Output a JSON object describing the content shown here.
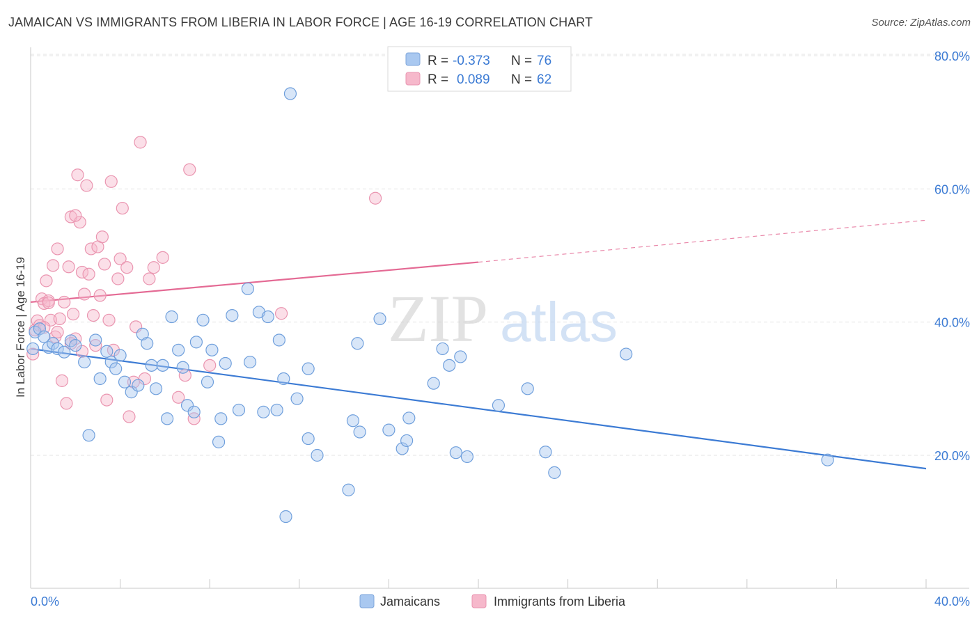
{
  "title": "JAMAICAN VS IMMIGRANTS FROM LIBERIA IN LABOR FORCE | AGE 16-19 CORRELATION CHART",
  "source": "Source: ZipAtlas.com",
  "watermark": {
    "zip": "ZIP",
    "atlas": "atlas"
  },
  "colors": {
    "blue": "#3c7bd4",
    "blue_fill": "#a9c8f0",
    "pink": "#e46a94",
    "pink_fill": "#f6b8cb",
    "grid": "#e3e3e3"
  },
  "legend": {
    "rows": [
      {
        "r_label": "R =",
        "r_value": "-0.373",
        "n_label": "N =",
        "n_value": "76"
      },
      {
        "r_label": "R =",
        "r_value": "0.089",
        "n_label": "N =",
        "n_value": "62"
      }
    ]
  },
  "chart_data": {
    "type": "scatter",
    "title": "JAMAICAN VS IMMIGRANTS FROM LIBERIA IN LABOR FORCE | AGE 16-19 CORRELATION CHART",
    "xlabel": "",
    "ylabel": "In Labor Force | Age 16-19",
    "xlim": [
      0,
      40
    ],
    "ylim": [
      0,
      82
    ],
    "x_tick_labels": [
      "0.0%",
      "40.0%"
    ],
    "y_ticks": [
      20,
      40,
      60,
      80
    ],
    "y_tick_labels": [
      "20.0%",
      "40.0%",
      "60.0%",
      "80.0%"
    ],
    "grid": true,
    "legend_position": "top-center",
    "series": [
      {
        "name": "Jamaicans",
        "color": "#3c7bd4",
        "trend": {
          "x": [
            0,
            40
          ],
          "y": [
            36.0,
            18.0
          ]
        },
        "points": [
          [
            0.2,
            38.5
          ],
          [
            0.4,
            39.0
          ],
          [
            0.6,
            37.8
          ],
          [
            0.8,
            36.2
          ],
          [
            1.0,
            36.8
          ],
          [
            1.2,
            36.0
          ],
          [
            1.5,
            35.5
          ],
          [
            1.8,
            37.2
          ],
          [
            2.0,
            36.5
          ],
          [
            2.4,
            34.0
          ],
          [
            2.6,
            23.0
          ],
          [
            2.9,
            37.3
          ],
          [
            3.1,
            31.5
          ],
          [
            3.4,
            35.6
          ],
          [
            3.6,
            34.0
          ],
          [
            3.8,
            33.0
          ],
          [
            4.0,
            35.0
          ],
          [
            4.2,
            31.0
          ],
          [
            4.5,
            29.5
          ],
          [
            4.8,
            30.5
          ],
          [
            5.0,
            38.2
          ],
          [
            5.2,
            36.8
          ],
          [
            5.4,
            33.5
          ],
          [
            5.6,
            30.0
          ],
          [
            5.9,
            33.5
          ],
          [
            6.1,
            25.5
          ],
          [
            6.3,
            40.8
          ],
          [
            6.6,
            35.8
          ],
          [
            6.8,
            33.2
          ],
          [
            7.0,
            27.5
          ],
          [
            7.3,
            26.5
          ],
          [
            7.4,
            37.0
          ],
          [
            7.7,
            40.3
          ],
          [
            7.9,
            31.0
          ],
          [
            8.1,
            35.8
          ],
          [
            8.4,
            22.0
          ],
          [
            8.5,
            25.5
          ],
          [
            8.7,
            33.8
          ],
          [
            9.0,
            41.0
          ],
          [
            9.3,
            26.8
          ],
          [
            9.7,
            45.0
          ],
          [
            9.8,
            34.0
          ],
          [
            10.2,
            41.5
          ],
          [
            10.4,
            26.5
          ],
          [
            10.6,
            40.8
          ],
          [
            11.0,
            26.8
          ],
          [
            11.1,
            37.3
          ],
          [
            11.3,
            31.5
          ],
          [
            11.6,
            74.3
          ],
          [
            11.4,
            10.8
          ],
          [
            11.9,
            28.5
          ],
          [
            12.4,
            22.5
          ],
          [
            12.4,
            33.0
          ],
          [
            12.8,
            20.0
          ],
          [
            14.2,
            14.8
          ],
          [
            14.4,
            25.2
          ],
          [
            14.7,
            23.5
          ],
          [
            14.6,
            36.8
          ],
          [
            15.6,
            40.5
          ],
          [
            16.0,
            23.8
          ],
          [
            16.6,
            21.0
          ],
          [
            16.8,
            22.2
          ],
          [
            16.9,
            25.6
          ],
          [
            18.0,
            30.8
          ],
          [
            18.4,
            36.0
          ],
          [
            18.7,
            33.5
          ],
          [
            19.0,
            20.4
          ],
          [
            19.2,
            34.8
          ],
          [
            19.5,
            19.8
          ],
          [
            20.9,
            27.5
          ],
          [
            22.2,
            30.0
          ],
          [
            23.0,
            20.5
          ],
          [
            23.4,
            17.4
          ],
          [
            26.6,
            35.2
          ],
          [
            35.6,
            19.3
          ],
          [
            0.1,
            36.0
          ]
        ]
      },
      {
        "name": "Immigrants from Liberia",
        "color": "#e46a94",
        "trend": {
          "x": [
            0,
            20
          ],
          "y": [
            43.0,
            49.0
          ],
          "dashed_to": {
            "x": 40,
            "y": 55.3
          }
        },
        "points": [
          [
            0.1,
            35.2
          ],
          [
            0.2,
            38.8
          ],
          [
            0.3,
            40.2
          ],
          [
            0.4,
            39.5
          ],
          [
            0.5,
            43.5
          ],
          [
            0.6,
            42.8
          ],
          [
            0.7,
            46.2
          ],
          [
            0.8,
            43.2
          ],
          [
            0.9,
            40.3
          ],
          [
            1.0,
            48.5
          ],
          [
            1.1,
            37.8
          ],
          [
            1.2,
            51.0
          ],
          [
            1.3,
            40.5
          ],
          [
            1.4,
            31.2
          ],
          [
            1.5,
            43.0
          ],
          [
            1.6,
            27.8
          ],
          [
            1.7,
            48.3
          ],
          [
            1.8,
            55.8
          ],
          [
            1.9,
            41.2
          ],
          [
            2.0,
            37.5
          ],
          [
            2.1,
            62.1
          ],
          [
            2.2,
            55.0
          ],
          [
            2.3,
            47.5
          ],
          [
            2.4,
            44.2
          ],
          [
            2.5,
            60.5
          ],
          [
            2.6,
            47.2
          ],
          [
            2.7,
            51.0
          ],
          [
            2.8,
            41.0
          ],
          [
            2.9,
            36.5
          ],
          [
            3.0,
            51.3
          ],
          [
            3.1,
            44.0
          ],
          [
            3.2,
            52.8
          ],
          [
            3.3,
            48.7
          ],
          [
            3.4,
            28.3
          ],
          [
            3.5,
            40.3
          ],
          [
            3.6,
            61.1
          ],
          [
            3.7,
            35.8
          ],
          [
            3.9,
            46.5
          ],
          [
            4.0,
            49.5
          ],
          [
            4.1,
            57.1
          ],
          [
            4.3,
            48.2
          ],
          [
            4.4,
            25.8
          ],
          [
            4.6,
            31.0
          ],
          [
            4.7,
            39.3
          ],
          [
            4.9,
            67.0
          ],
          [
            5.1,
            31.5
          ],
          [
            5.3,
            46.5
          ],
          [
            5.5,
            48.2
          ],
          [
            5.9,
            49.7
          ],
          [
            6.6,
            28.7
          ],
          [
            6.9,
            32.0
          ],
          [
            7.1,
            62.9
          ],
          [
            7.3,
            25.5
          ],
          [
            8.0,
            33.5
          ],
          [
            11.2,
            41.3
          ],
          [
            15.4,
            58.6
          ],
          [
            0.6,
            39.2
          ],
          [
            2.0,
            56.0
          ],
          [
            1.2,
            38.5
          ],
          [
            0.8,
            42.9
          ],
          [
            2.3,
            35.6
          ],
          [
            1.8,
            36.8
          ]
        ]
      }
    ]
  },
  "bottom_legend": [
    {
      "label": "Jamaicans"
    },
    {
      "label": "Immigrants from Liberia"
    }
  ]
}
